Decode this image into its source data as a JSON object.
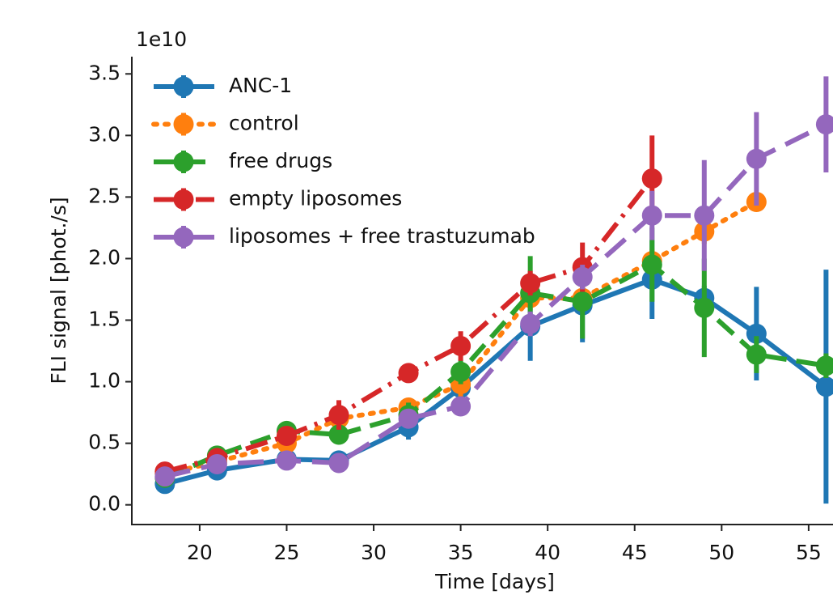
{
  "chart_data": {
    "type": "line",
    "x_label": "Time [days]",
    "y_label": "FLI signal [phot./s]",
    "y_offset_label": "1e10",
    "xlim": [
      16.1,
      56.4
    ],
    "ylim": [
      -0.16,
      3.64
    ],
    "xticks": [
      20,
      25,
      30,
      35,
      40,
      45,
      50,
      55
    ],
    "yticks": [
      {
        "value": 0,
        "label": "0.0"
      },
      {
        "value": 0.5,
        "label": "0.5"
      },
      {
        "value": 1,
        "label": "1.0"
      },
      {
        "value": 1.5,
        "label": "1.5"
      },
      {
        "value": 2,
        "label": "2.0"
      },
      {
        "value": 2.5,
        "label": "2.5"
      },
      {
        "value": 3,
        "label": "3.0"
      },
      {
        "value": 3.5,
        "label": "3.5"
      }
    ],
    "legend": "upper left",
    "series": [
      {
        "name": "ANC-1",
        "color": "#1f77b4",
        "linestyle": "solid",
        "x": [
          18,
          21,
          25,
          28,
          32,
          35,
          39,
          42,
          46,
          49,
          52,
          56
        ],
        "values": [
          0.17,
          0.28,
          0.37,
          0.36,
          0.63,
          0.95,
          1.45,
          1.62,
          1.83,
          1.68,
          1.39,
          0.96
        ],
        "errors": [
          0.05,
          0.05,
          0.05,
          0.05,
          0.1,
          0.1,
          0.28,
          0.3,
          0.32,
          0.1,
          0.38,
          0.95
        ]
      },
      {
        "name": "control",
        "color": "#ff7f0e",
        "linestyle": "dotted",
        "x": [
          18,
          21,
          25,
          28,
          32,
          35,
          39,
          42,
          46,
          49,
          52
        ],
        "values": [
          0.25,
          0.35,
          0.5,
          0.7,
          0.79,
          0.98,
          1.68,
          1.68,
          1.98,
          2.22,
          2.46
        ],
        "errors": [
          0.05,
          0.05,
          0.05,
          0.1,
          0.05,
          0.1,
          0.1,
          0.1,
          0.1,
          0.1,
          0.05
        ]
      },
      {
        "name": "free drugs",
        "color": "#2ca02c",
        "linestyle": "dashed",
        "x": [
          18,
          21,
          25,
          28,
          32,
          35,
          39,
          42,
          46,
          49,
          52,
          56
        ],
        "values": [
          0.22,
          0.4,
          0.6,
          0.57,
          0.73,
          1.08,
          1.72,
          1.65,
          1.95,
          1.6,
          1.22,
          1.13
        ],
        "errors": [
          0.05,
          0.05,
          0.05,
          0.05,
          0.1,
          0.1,
          0.3,
          0.3,
          0.3,
          0.4,
          0.15,
          0.1
        ]
      },
      {
        "name": "empty liposomes",
        "color": "#d62728",
        "linestyle": "dashdot",
        "x": [
          18,
          21,
          25,
          28,
          32,
          35,
          39,
          42,
          46
        ],
        "values": [
          0.27,
          0.38,
          0.56,
          0.73,
          1.07,
          1.29,
          1.8,
          1.93,
          2.65
        ],
        "errors": [
          0.05,
          0.05,
          0.05,
          0.12,
          0.05,
          0.12,
          0.1,
          0.2,
          0.35
        ]
      },
      {
        "name": "liposomes + free trastuzumab",
        "color": "#9467bd",
        "linestyle": "longdash",
        "x": [
          18,
          21,
          25,
          28,
          32,
          35,
          39,
          42,
          46,
          49,
          52,
          56
        ],
        "values": [
          0.23,
          0.33,
          0.36,
          0.34,
          0.7,
          0.8,
          1.47,
          1.85,
          2.35,
          2.35,
          2.81,
          3.09
        ],
        "errors": [
          0.05,
          0.05,
          0.05,
          0.05,
          0.05,
          0.05,
          0.1,
          0.1,
          0.2,
          0.45,
          0.38,
          0.39
        ]
      }
    ]
  }
}
